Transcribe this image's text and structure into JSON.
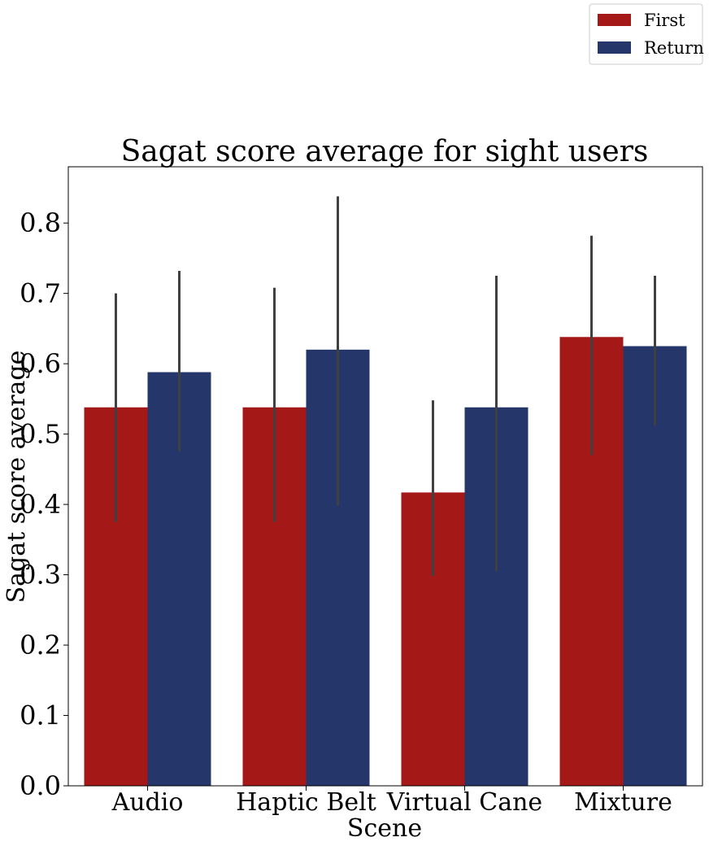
{
  "chart_data": {
    "type": "bar",
    "title": "Sagat score average for sight users",
    "xlabel": "Scene",
    "ylabel": "Sagat score average",
    "categories": [
      "Audio",
      "Haptic Belt",
      "Virtual Cane",
      "Mixture"
    ],
    "ylim": [
      0,
      0.88
    ],
    "yticks": [
      "0.0",
      "0.1",
      "0.2",
      "0.3",
      "0.4",
      "0.5",
      "0.6",
      "0.7",
      "0.8"
    ],
    "grid": false,
    "legend_position": "top-right, outside plot",
    "series": [
      {
        "name": "First",
        "color": "#a51818",
        "values": [
          0.538,
          0.538,
          0.417,
          0.638
        ],
        "error_low": [
          0.375,
          0.375,
          0.298,
          0.47
        ],
        "error_high": [
          0.7,
          0.708,
          0.548,
          0.782
        ]
      },
      {
        "name": "Return",
        "color": "#25376a",
        "values": [
          0.588,
          0.62,
          0.538,
          0.625
        ],
        "error_low": [
          0.475,
          0.398,
          0.305,
          0.512
        ],
        "error_high": [
          0.732,
          0.838,
          0.725,
          0.725
        ]
      }
    ],
    "errorbar_color": "#404040"
  }
}
